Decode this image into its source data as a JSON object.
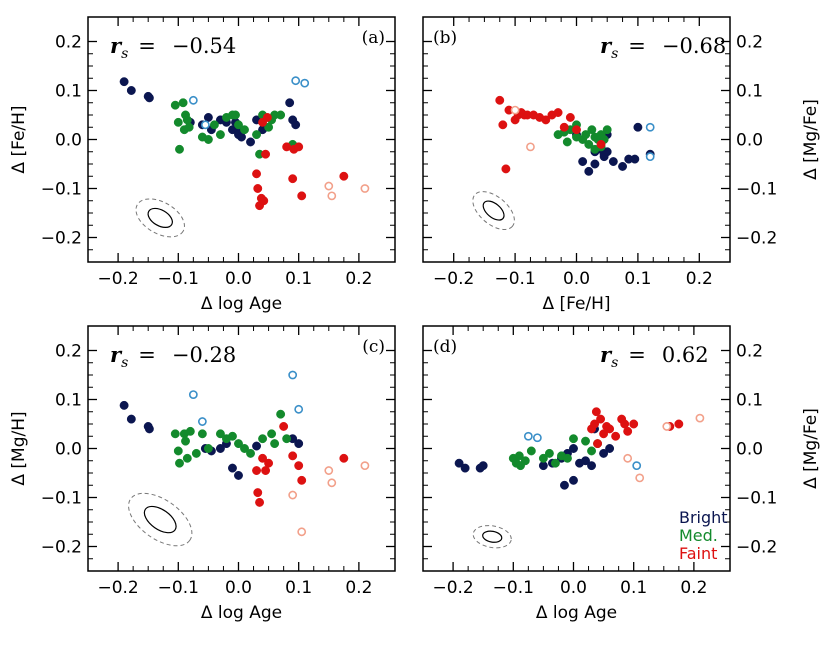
{
  "colors": {
    "bright": "#0b1650",
    "med": "#138a2c",
    "faint": "#dd1111",
    "bright_open": "#3a8fc8",
    "faint_open": "#f2a08a"
  },
  "legend": {
    "bright": "Bright",
    "med": "Med.",
    "faint": "Faint"
  },
  "chart_data": [
    {
      "type": "scatter",
      "panel": "(a)",
      "rs_symbol": "r",
      "rs_sub": "s",
      "rs_eq": "=",
      "rs_value": "−0.54",
      "rs_align": "left",
      "xlabel": "Δ log Age",
      "ylabel": "Δ [Fe/H]",
      "ylabel_side": "left",
      "xlim": [
        -0.25,
        0.26
      ],
      "ylim": [
        -0.25,
        0.25
      ],
      "xticks": [
        "−0.2",
        "−0.1",
        "0.0",
        "0.1",
        "0.2"
      ],
      "yticks": [
        "0.2",
        "0.1",
        "0.0",
        "−0.1",
        "−0.2"
      ],
      "error_ellipse": {
        "cx": -0.13,
        "cy": -0.16,
        "rx": 0.022,
        "ry": 0.016,
        "angle": 30
      },
      "series": [
        {
          "name": "Bright",
          "marker": "filled",
          "color_key": "bright",
          "x": [
            -0.19,
            -0.178,
            -0.15,
            -0.148,
            -0.08,
            -0.06,
            -0.05,
            -0.045,
            -0.03,
            -0.02,
            -0.01,
            -0.005,
            0.0,
            0.0,
            0.005,
            0.02,
            0.03,
            0.04,
            0.085,
            0.09,
            0.095
          ],
          "y": [
            0.118,
            0.1,
            0.088,
            0.085,
            0.035,
            0.03,
            0.045,
            0.02,
            0.04,
            0.035,
            0.02,
            0.035,
            0.015,
            0.01,
            0.005,
            -0.005,
            0.04,
            0.02,
            0.075,
            0.04,
            0.03
          ]
        },
        {
          "name": "Med.",
          "marker": "filled",
          "color_key": "med",
          "x": [
            -0.105,
            -0.1,
            -0.098,
            -0.092,
            -0.09,
            -0.088,
            -0.085,
            -0.082,
            -0.06,
            -0.05,
            -0.04,
            -0.03,
            -0.02,
            -0.01,
            -0.005,
            0.0,
            0.01,
            0.03,
            0.035,
            0.04,
            0.05,
            0.055,
            0.06,
            0.07,
            0.09
          ],
          "y": [
            0.07,
            0.035,
            -0.02,
            0.075,
            0.02,
            0.05,
            0.04,
            0.025,
            0.005,
            0.0,
            0.03,
            0.01,
            0.045,
            0.05,
            0.05,
            0.03,
            0.02,
            0.01,
            -0.03,
            0.05,
            0.025,
            0.04,
            0.05,
            0.05,
            -0.01
          ]
        },
        {
          "name": "Faint",
          "marker": "filled",
          "color_key": "faint",
          "x": [
            0.03,
            0.032,
            0.035,
            0.038,
            0.04,
            0.042,
            0.045,
            0.048,
            0.08,
            0.09,
            0.092,
            0.1,
            0.105,
            0.175
          ],
          "y": [
            -0.07,
            -0.1,
            -0.135,
            -0.12,
            0.035,
            -0.125,
            -0.03,
            0.045,
            -0.015,
            -0.08,
            -0.02,
            -0.015,
            -0.115,
            -0.075
          ]
        },
        {
          "name": "Bright (open)",
          "marker": "open",
          "color_key": "bright_open",
          "x": [
            -0.075,
            -0.055,
            0.095,
            0.11
          ],
          "y": [
            0.08,
            0.03,
            0.12,
            0.115
          ]
        },
        {
          "name": "Faint (open)",
          "marker": "open",
          "color_key": "faint_open",
          "x": [
            0.15,
            0.155,
            0.21
          ],
          "y": [
            -0.095,
            -0.115,
            -0.1
          ]
        }
      ]
    },
    {
      "type": "scatter",
      "panel": "(b)",
      "rs_symbol": "r",
      "rs_sub": "s",
      "rs_eq": "=",
      "rs_value": "−0.68",
      "rs_align": "right",
      "xlabel": "Δ [Fe/H]",
      "ylabel": "Δ [Mg/Fe]",
      "ylabel_side": "right",
      "xlim": [
        -0.25,
        0.25
      ],
      "ylim": [
        -0.25,
        0.25
      ],
      "xticks": [
        "−0.2",
        "−0.1",
        "0.0",
        "0.1",
        "0.2"
      ],
      "yticks": [
        "0.2",
        "0.1",
        "0.0",
        "−0.1",
        "−0.2"
      ],
      "error_ellipse": {
        "cx": -0.135,
        "cy": -0.145,
        "rx": 0.02,
        "ry": 0.014,
        "angle": 40
      },
      "series": [
        {
          "name": "Bright",
          "marker": "filled",
          "color_key": "bright",
          "x": [
            0.0,
            0.01,
            0.02,
            0.03,
            0.03,
            0.04,
            0.045,
            0.045,
            0.05,
            0.05,
            0.06,
            0.075,
            0.085,
            0.095,
            0.1,
            0.12
          ],
          "y": [
            0.01,
            -0.045,
            -0.065,
            -0.025,
            -0.05,
            -0.02,
            -0.03,
            -0.035,
            -0.025,
            0.01,
            -0.045,
            -0.055,
            -0.04,
            -0.04,
            0.025,
            -0.03
          ]
        },
        {
          "name": "Med.",
          "marker": "filled",
          "color_key": "med",
          "x": [
            -0.03,
            -0.02,
            -0.015,
            -0.01,
            0.0,
            0.0,
            0.01,
            0.015,
            0.02,
            0.025,
            0.03,
            0.03,
            0.035,
            0.04,
            0.04,
            0.045,
            0.05
          ],
          "y": [
            0.01,
            0.015,
            -0.005,
            0.02,
            0.005,
            0.03,
            0.0,
            0.01,
            -0.01,
            0.02,
            0.005,
            -0.02,
            0.0,
            -0.015,
            0.01,
            0.0,
            0.02
          ]
        },
        {
          "name": "Faint",
          "marker": "filled",
          "color_key": "faint",
          "x": [
            -0.125,
            -0.12,
            -0.115,
            -0.11,
            -0.1,
            -0.095,
            -0.09,
            -0.085,
            -0.08,
            -0.07,
            -0.06,
            -0.05,
            -0.04,
            -0.03,
            -0.02,
            -0.01,
            0.0,
            0.04
          ],
          "y": [
            0.08,
            0.03,
            -0.06,
            0.06,
            0.04,
            0.05,
            0.055,
            0.05,
            0.05,
            0.05,
            0.045,
            0.04,
            0.05,
            0.055,
            0.025,
            0.045,
            0.02,
            -0.01
          ]
        },
        {
          "name": "Bright (open)",
          "marker": "open",
          "color_key": "bright_open",
          "x": [
            0.12,
            0.12
          ],
          "y": [
            0.025,
            -0.035
          ]
        },
        {
          "name": "Faint (open)",
          "marker": "open",
          "color_key": "faint_open",
          "x": [
            -0.1,
            -0.075
          ],
          "y": [
            0.06,
            -0.015
          ]
        }
      ]
    },
    {
      "type": "scatter",
      "panel": "(c)",
      "rs_symbol": "r",
      "rs_sub": "s",
      "rs_eq": "=",
      "rs_value": "−0.28",
      "rs_align": "left",
      "xlabel": "Δ log Age",
      "ylabel": "Δ [Mg/H]",
      "ylabel_side": "left",
      "xlim": [
        -0.25,
        0.26
      ],
      "ylim": [
        -0.25,
        0.25
      ],
      "xticks": [
        "−0.2",
        "−0.1",
        "0.0",
        "0.1",
        "0.2"
      ],
      "yticks": [
        "0.2",
        "0.1",
        "0.0",
        "−0.1",
        "−0.2"
      ],
      "error_ellipse": {
        "cx": -0.13,
        "cy": -0.145,
        "rx": 0.03,
        "ry": 0.02,
        "angle": 35
      },
      "series": [
        {
          "name": "Bright",
          "marker": "filled",
          "color_key": "bright",
          "x": [
            -0.19,
            -0.178,
            -0.15,
            -0.148,
            -0.055,
            -0.045,
            -0.03,
            -0.02,
            -0.01,
            0.0,
            0.03,
            0.09,
            0.1
          ],
          "y": [
            0.088,
            0.06,
            0.045,
            0.04,
            0.0,
            -0.005,
            0.0,
            0.01,
            -0.04,
            -0.055,
            0.005,
            0.02,
            0.01
          ]
        },
        {
          "name": "Med.",
          "marker": "filled",
          "color_key": "med",
          "x": [
            -0.105,
            -0.1,
            -0.098,
            -0.09,
            -0.088,
            -0.085,
            -0.08,
            -0.07,
            -0.06,
            -0.05,
            -0.03,
            -0.02,
            -0.01,
            0.0,
            0.01,
            0.02,
            0.04,
            0.055,
            0.06,
            0.07,
            0.08
          ],
          "y": [
            0.03,
            -0.005,
            -0.03,
            0.03,
            0.015,
            -0.02,
            0.035,
            -0.01,
            0.03,
            0.0,
            0.03,
            0.02,
            0.025,
            0.01,
            0.0,
            -0.01,
            0.02,
            0.03,
            0.01,
            0.07,
            0.02
          ]
        },
        {
          "name": "Faint",
          "marker": "filled",
          "color_key": "faint",
          "x": [
            0.03,
            0.032,
            0.035,
            0.04,
            0.045,
            0.05,
            0.075,
            0.09,
            0.1,
            0.105,
            0.175
          ],
          "y": [
            -0.045,
            -0.09,
            -0.11,
            -0.02,
            -0.045,
            -0.03,
            0.045,
            -0.015,
            -0.035,
            -0.065,
            -0.02
          ]
        },
        {
          "name": "Bright (open)",
          "marker": "open",
          "color_key": "bright_open",
          "x": [
            -0.075,
            -0.06,
            0.09,
            0.1
          ],
          "y": [
            0.11,
            0.055,
            0.15,
            0.08
          ]
        },
        {
          "name": "Faint (open)",
          "marker": "open",
          "color_key": "faint_open",
          "x": [
            0.09,
            0.15,
            0.155,
            0.21,
            0.105
          ],
          "y": [
            -0.095,
            -0.045,
            -0.07,
            -0.035,
            -0.17
          ]
        }
      ]
    },
    {
      "type": "scatter",
      "panel": "(d)",
      "rs_symbol": "r",
      "rs_sub": "s",
      "rs_eq": "=",
      "rs_value": "0.62",
      "rs_align": "right",
      "xlabel": "Δ log Age",
      "ylabel": "Δ [Mg/Fe]",
      "ylabel_side": "right",
      "xlim": [
        -0.25,
        0.26
      ],
      "ylim": [
        -0.25,
        0.25
      ],
      "xticks": [
        "−0.2",
        "−0.1",
        "0.0",
        "0.1",
        "0.2"
      ],
      "yticks": [
        "0.2",
        "0.1",
        "0.0",
        "−0.1",
        "−0.2"
      ],
      "error_ellipse": {
        "cx": -0.135,
        "cy": -0.18,
        "rx": 0.016,
        "ry": 0.011,
        "angle": 10
      },
      "series": [
        {
          "name": "Bright",
          "marker": "filled",
          "color_key": "bright",
          "x": [
            -0.19,
            -0.18,
            -0.155,
            -0.15,
            -0.05,
            -0.035,
            -0.02,
            -0.015,
            -0.01,
            0.0,
            0.0,
            0.01,
            0.02,
            0.03,
            0.035,
            0.05,
            0.06
          ],
          "y": [
            -0.03,
            -0.04,
            -0.04,
            -0.035,
            -0.035,
            -0.03,
            -0.02,
            -0.075,
            -0.01,
            -0.065,
            0.0,
            -0.03,
            -0.025,
            -0.035,
            0.04,
            -0.01,
            0.0
          ]
        },
        {
          "name": "Med.",
          "marker": "filled",
          "color_key": "med",
          "x": [
            -0.1,
            -0.095,
            -0.09,
            -0.088,
            -0.08,
            -0.07,
            -0.05,
            -0.04,
            -0.03,
            -0.02,
            -0.01,
            0.0,
            0.02,
            0.03,
            0.04
          ],
          "y": [
            -0.02,
            -0.03,
            -0.015,
            -0.035,
            -0.025,
            -0.005,
            -0.02,
            -0.01,
            -0.03,
            -0.015,
            -0.02,
            0.02,
            0.015,
            -0.005,
            0.01
          ]
        },
        {
          "name": "Faint",
          "marker": "filled",
          "color_key": "faint",
          "x": [
            0.03,
            0.035,
            0.038,
            0.04,
            0.045,
            0.05,
            0.055,
            0.06,
            0.07,
            0.08,
            0.085,
            0.09,
            0.1,
            0.16,
            0.175
          ],
          "y": [
            0.04,
            0.05,
            0.075,
            0.01,
            0.06,
            0.03,
            0.045,
            0.04,
            0.025,
            0.06,
            0.05,
            0.035,
            0.05,
            0.045,
            0.05
          ]
        },
        {
          "name": "Bright (open)",
          "marker": "open",
          "color_key": "bright_open",
          "x": [
            -0.075,
            -0.06,
            0.105
          ],
          "y": [
            0.025,
            0.022,
            -0.035
          ]
        },
        {
          "name": "Faint (open)",
          "marker": "open",
          "color_key": "faint_open",
          "x": [
            0.09,
            0.11,
            0.155,
            0.21
          ],
          "y": [
            -0.02,
            -0.06,
            0.045,
            0.062
          ]
        }
      ]
    }
  ]
}
